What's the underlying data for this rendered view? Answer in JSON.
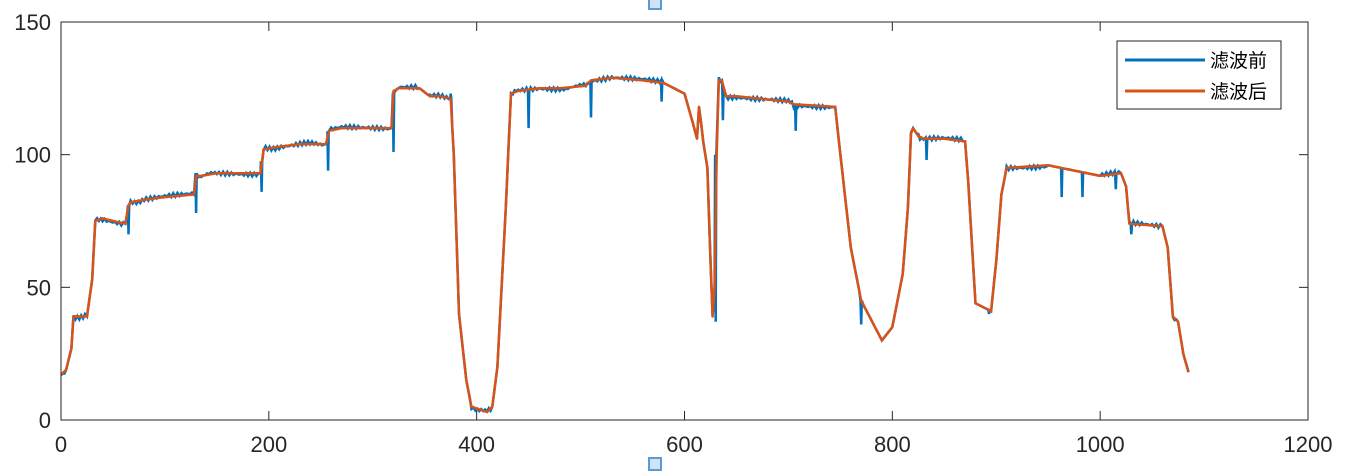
{
  "chart_data": {
    "type": "line",
    "title": "",
    "xlabel": "",
    "ylabel": "",
    "xlim": [
      0,
      1200
    ],
    "ylim": [
      0,
      150
    ],
    "xticks": [
      "0",
      "200",
      "400",
      "600",
      "800",
      "1000",
      "1200"
    ],
    "yticks": [
      "0",
      "50",
      "100",
      "150"
    ],
    "grid": false,
    "legend_position": "top-right",
    "series": [
      {
        "name": "滤波前",
        "color": "#0072BD"
      },
      {
        "name": "滤波后",
        "color": "#D95319"
      }
    ],
    "x": [
      0,
      5,
      10,
      12,
      25,
      30,
      33,
      40,
      50,
      62,
      65,
      67,
      80,
      100,
      128,
      130,
      135,
      150,
      192,
      195,
      210,
      230,
      255,
      258,
      270,
      290,
      318,
      320,
      325,
      345,
      355,
      365,
      375,
      378,
      383,
      390,
      395,
      410,
      415,
      420,
      428,
      433,
      440,
      460,
      480,
      505,
      510,
      530,
      560,
      580,
      600,
      608,
      612,
      614,
      616,
      618,
      622,
      625,
      627,
      629,
      631,
      633,
      636,
      640,
      650,
      700,
      705,
      745,
      750,
      760,
      770,
      790,
      800,
      810,
      815,
      818,
      820,
      825,
      830,
      850,
      870,
      873,
      880,
      895,
      900,
      905,
      910,
      950,
      1000,
      1020,
      1025,
      1028,
      1060,
      1065,
      1070,
      1075,
      1080,
      1085
    ],
    "filtered": [
      17,
      19,
      27,
      39,
      39,
      53,
      75,
      76,
      75,
      74,
      81,
      82,
      83,
      84,
      85,
      92,
      92,
      93,
      93,
      102,
      103,
      104,
      104,
      109,
      110,
      110,
      110,
      124,
      125,
      125,
      122,
      122,
      121,
      100,
      40,
      15,
      5,
      3,
      5,
      20,
      80,
      123,
      124,
      125,
      125,
      126,
      128,
      129,
      128,
      127,
      123,
      112,
      106,
      118,
      112,
      105,
      95,
      60,
      39,
      50,
      100,
      128,
      128,
      122,
      122,
      120,
      119,
      118,
      100,
      65,
      45,
      30,
      35,
      55,
      80,
      108,
      110,
      107,
      106,
      106,
      105,
      90,
      44,
      41,
      60,
      85,
      95,
      96,
      92,
      93,
      88,
      74,
      73,
      65,
      39,
      37,
      25,
      18
    ],
    "unfiltered_spikes": [
      [
        65,
        70
      ],
      [
        130,
        78
      ],
      [
        193,
        86
      ],
      [
        257,
        94
      ],
      [
        320,
        101
      ],
      [
        375,
        123
      ],
      [
        450,
        110
      ],
      [
        510,
        114
      ],
      [
        578,
        120
      ],
      [
        630,
        37
      ],
      [
        637,
        113
      ],
      [
        707,
        109
      ],
      [
        770,
        36
      ],
      [
        833,
        98
      ],
      [
        893,
        40
      ],
      [
        963,
        84
      ],
      [
        983,
        84
      ],
      [
        1015,
        87
      ],
      [
        1030,
        70
      ]
    ]
  }
}
